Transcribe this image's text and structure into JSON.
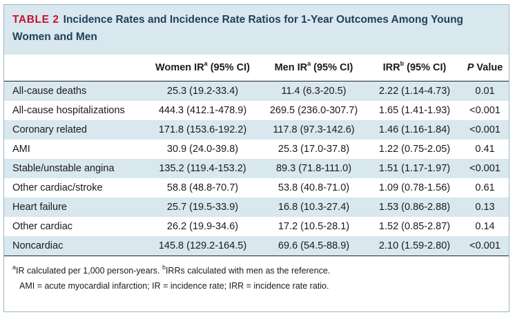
{
  "title": {
    "label": "TABLE 2",
    "text": "Incidence Rates and Incidence Rate Ratios for 1-Year Outcomes Among Young Women and Men"
  },
  "header": {
    "outcome": "",
    "women": {
      "text": "Women IR",
      "sup": "a",
      "suffix": " (95% CI)"
    },
    "men": {
      "text": "Men IR",
      "sup": "a",
      "suffix": " (95% CI)"
    },
    "irr": {
      "text": "IRR",
      "sup": "b",
      "suffix": " (95% CI)"
    },
    "pvalue": {
      "p": "P",
      "rest": " Value"
    }
  },
  "rows": [
    {
      "outcome": "All-cause deaths",
      "women": "25.3 (19.2-33.4)",
      "men": "11.4 (6.3-20.5)",
      "irr": "2.22 (1.14-4.73)",
      "p": "0.01"
    },
    {
      "outcome": "All-cause hospitalizations",
      "women": "444.3 (412.1-478.9)",
      "men": "269.5 (236.0-307.7)",
      "irr": "1.65 (1.41-1.93)",
      "p": "<0.001"
    },
    {
      "outcome": "Coronary related",
      "women": "171.8 (153.6-192.2)",
      "men": "117.8 (97.3-142.6)",
      "irr": "1.46 (1.16-1.84)",
      "p": "<0.001"
    },
    {
      "outcome": "AMI",
      "women": "30.9 (24.0-39.8)",
      "men": "25.3 (17.0-37.8)",
      "irr": "1.22 (0.75-2.05)",
      "p": "0.41"
    },
    {
      "outcome": "Stable/unstable angina",
      "women": "135.2 (119.4-153.2)",
      "men": "89.3 (71.8-111.0)",
      "irr": "1.51 (1.17-1.97)",
      "p": "<0.001"
    },
    {
      "outcome": "Other cardiac/stroke",
      "women": "58.8 (48.8-70.7)",
      "men": "53.8 (40.8-71.0)",
      "irr": "1.09 (0.78-1.56)",
      "p": "0.61"
    },
    {
      "outcome": "Heart failure",
      "women": "25.7 (19.5-33.9)",
      "men": "16.8 (10.3-27.4)",
      "irr": "1.53 (0.86-2.88)",
      "p": "0.13"
    },
    {
      "outcome": "Other cardiac",
      "women": "26.2 (19.9-34.6)",
      "men": "17.2 (10.5-28.1)",
      "irr": "1.52 (0.85-2.87)",
      "p": "0.14"
    },
    {
      "outcome": "Noncardiac",
      "women": "145.8 (129.2-164.5)",
      "men": "69.6 (54.5-88.9)",
      "irr": "2.10 (1.59-2.80)",
      "p": "<0.001"
    }
  ],
  "footnotes": {
    "a_mark": "a",
    "a_text": "IR calculated per 1,000 person-years. ",
    "b_mark": "b",
    "b_text": "IRRs calculated with men as the reference.",
    "abbreviations": "AMI = acute myocardial infarction; IR = incidence rate; IRR = incidence rate ratio."
  },
  "colors": {
    "title_label": "#c8102e",
    "title_text": "#1f3f5c",
    "band": "#d9e7ef"
  }
}
